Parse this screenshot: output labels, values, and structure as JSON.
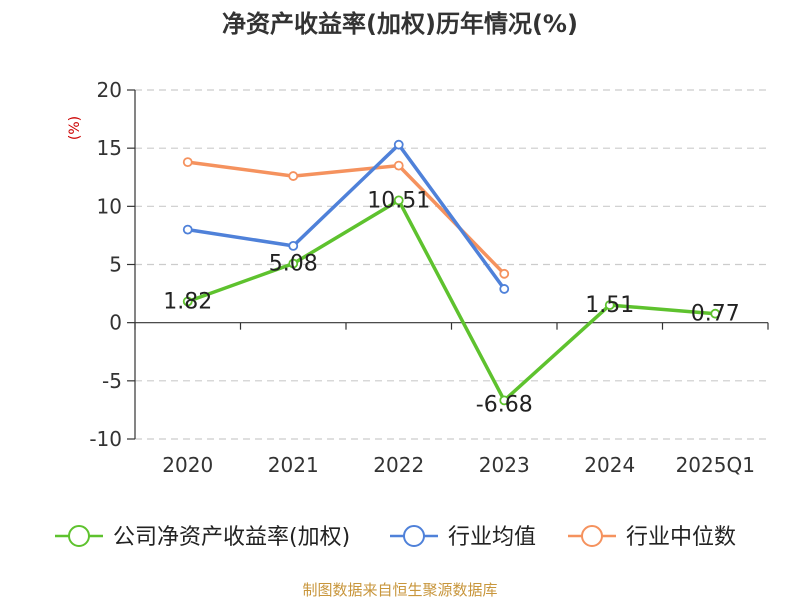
{
  "chart_data": {
    "type": "line",
    "title": "净资产收益率(加权)历年情况(%)",
    "ylabel": "(%)",
    "xlabel": "",
    "categories": [
      "2020",
      "2021",
      "2022",
      "2023",
      "2024",
      "2025Q1"
    ],
    "ylim": [
      -10,
      20
    ],
    "yticks": [
      20,
      15,
      10,
      5,
      0,
      -5,
      -10
    ],
    "grid": true,
    "legend_position": "bottom",
    "series": [
      {
        "name": "公司净资产收益率(加权)",
        "values": [
          1.82,
          5.08,
          10.51,
          -6.68,
          1.51,
          0.77
        ],
        "labels": [
          "1.82",
          "5.08",
          "10.51",
          "-6.68",
          "1.51",
          "0.77"
        ],
        "color": "#5ec22e"
      },
      {
        "name": "行业均值",
        "values": [
          8.0,
          6.6,
          15.3,
          2.9,
          null,
          null
        ],
        "color": "#4f81d9"
      },
      {
        "name": "行业中位数",
        "values": [
          13.8,
          12.6,
          13.5,
          4.2,
          null,
          null
        ],
        "color": "#f5925e"
      }
    ],
    "source": "制图数据来自恒生聚源数据库"
  },
  "colors": {
    "title": "#333333",
    "axis": "#333333",
    "grid": "#cccccc",
    "ylabel": "#cc0000",
    "source": "#c8963c"
  }
}
